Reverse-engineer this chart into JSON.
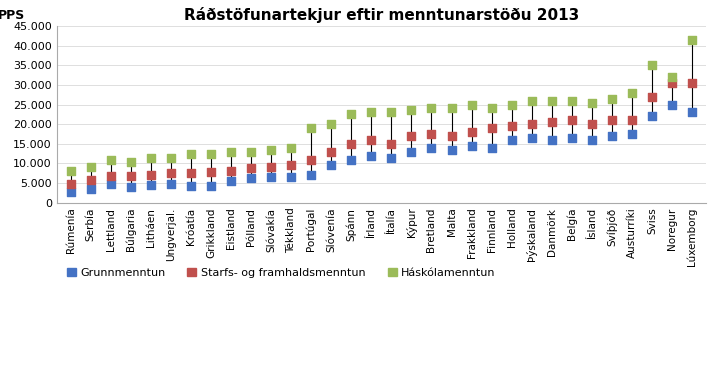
{
  "title": "Ráðstöfunartekjur eftir menntunarstöðu 2013",
  "ylabel": "PPS",
  "countries": [
    "Rúmenía",
    "Serbía",
    "Lettland",
    "Búlgaria",
    "Litháen",
    "Ungverjal.",
    "Króatía",
    "Grikkland",
    "Eistland",
    "Pólland",
    "Slóvakía",
    "Tékkland",
    "Portúgal",
    "Slóvenía",
    "Spánn",
    "Írland",
    "Ítalía",
    "Kýpur",
    "Bretland",
    "Malta",
    "Frakkland",
    "Finnland",
    "Holland",
    "Þýskaland",
    "Danmörk",
    "Belgía",
    "Ísland",
    "Svíþjóð",
    "Austurríki",
    "Sviss",
    "Noregur",
    "Lúxemborg"
  ],
  "grunnmenntun": [
    2800,
    3500,
    4800,
    4100,
    4600,
    4700,
    4300,
    4400,
    5600,
    6200,
    6500,
    6500,
    7200,
    9500,
    11000,
    12000,
    11500,
    13000,
    14000,
    13500,
    14500,
    14000,
    16000,
    16500,
    16000,
    16500,
    16000,
    17000,
    17500,
    22000,
    25000,
    23000
  ],
  "starfsmenntun": [
    4800,
    5800,
    6800,
    6800,
    7200,
    7600,
    7500,
    7800,
    8200,
    8800,
    9000,
    9500,
    11000,
    13000,
    15000,
    16000,
    15000,
    17000,
    17500,
    17000,
    18000,
    19000,
    19500,
    20000,
    20500,
    21000,
    20000,
    21000,
    21000,
    27000,
    30500,
    30500
  ],
  "haskolamenntun": [
    8000,
    9000,
    11000,
    10500,
    11500,
    11500,
    12500,
    12500,
    13000,
    13000,
    13500,
    14000,
    19000,
    20000,
    22500,
    23000,
    23000,
    23500,
    24000,
    24000,
    25000,
    24000,
    25000,
    26000,
    26000,
    26000,
    25500,
    26500,
    28000,
    35000,
    32000,
    41500
  ],
  "color_blue": "#4472C4",
  "color_red": "#C0504D",
  "color_green": "#9BBB59",
  "legend_labels": [
    "Grunnmenntun",
    "Starfs- og framhaldsmenntun",
    "Háskólamenntun"
  ],
  "ylim": [
    0,
    45000
  ],
  "yticks": [
    0,
    5000,
    10000,
    15000,
    20000,
    25000,
    30000,
    35000,
    40000,
    45000
  ],
  "background_color": "#FFFFFF",
  "plot_background": "#FFFFFF",
  "grid_color": "#D9D9D9",
  "title_fontsize": 11,
  "axis_fontsize": 9,
  "tick_fontsize": 8
}
